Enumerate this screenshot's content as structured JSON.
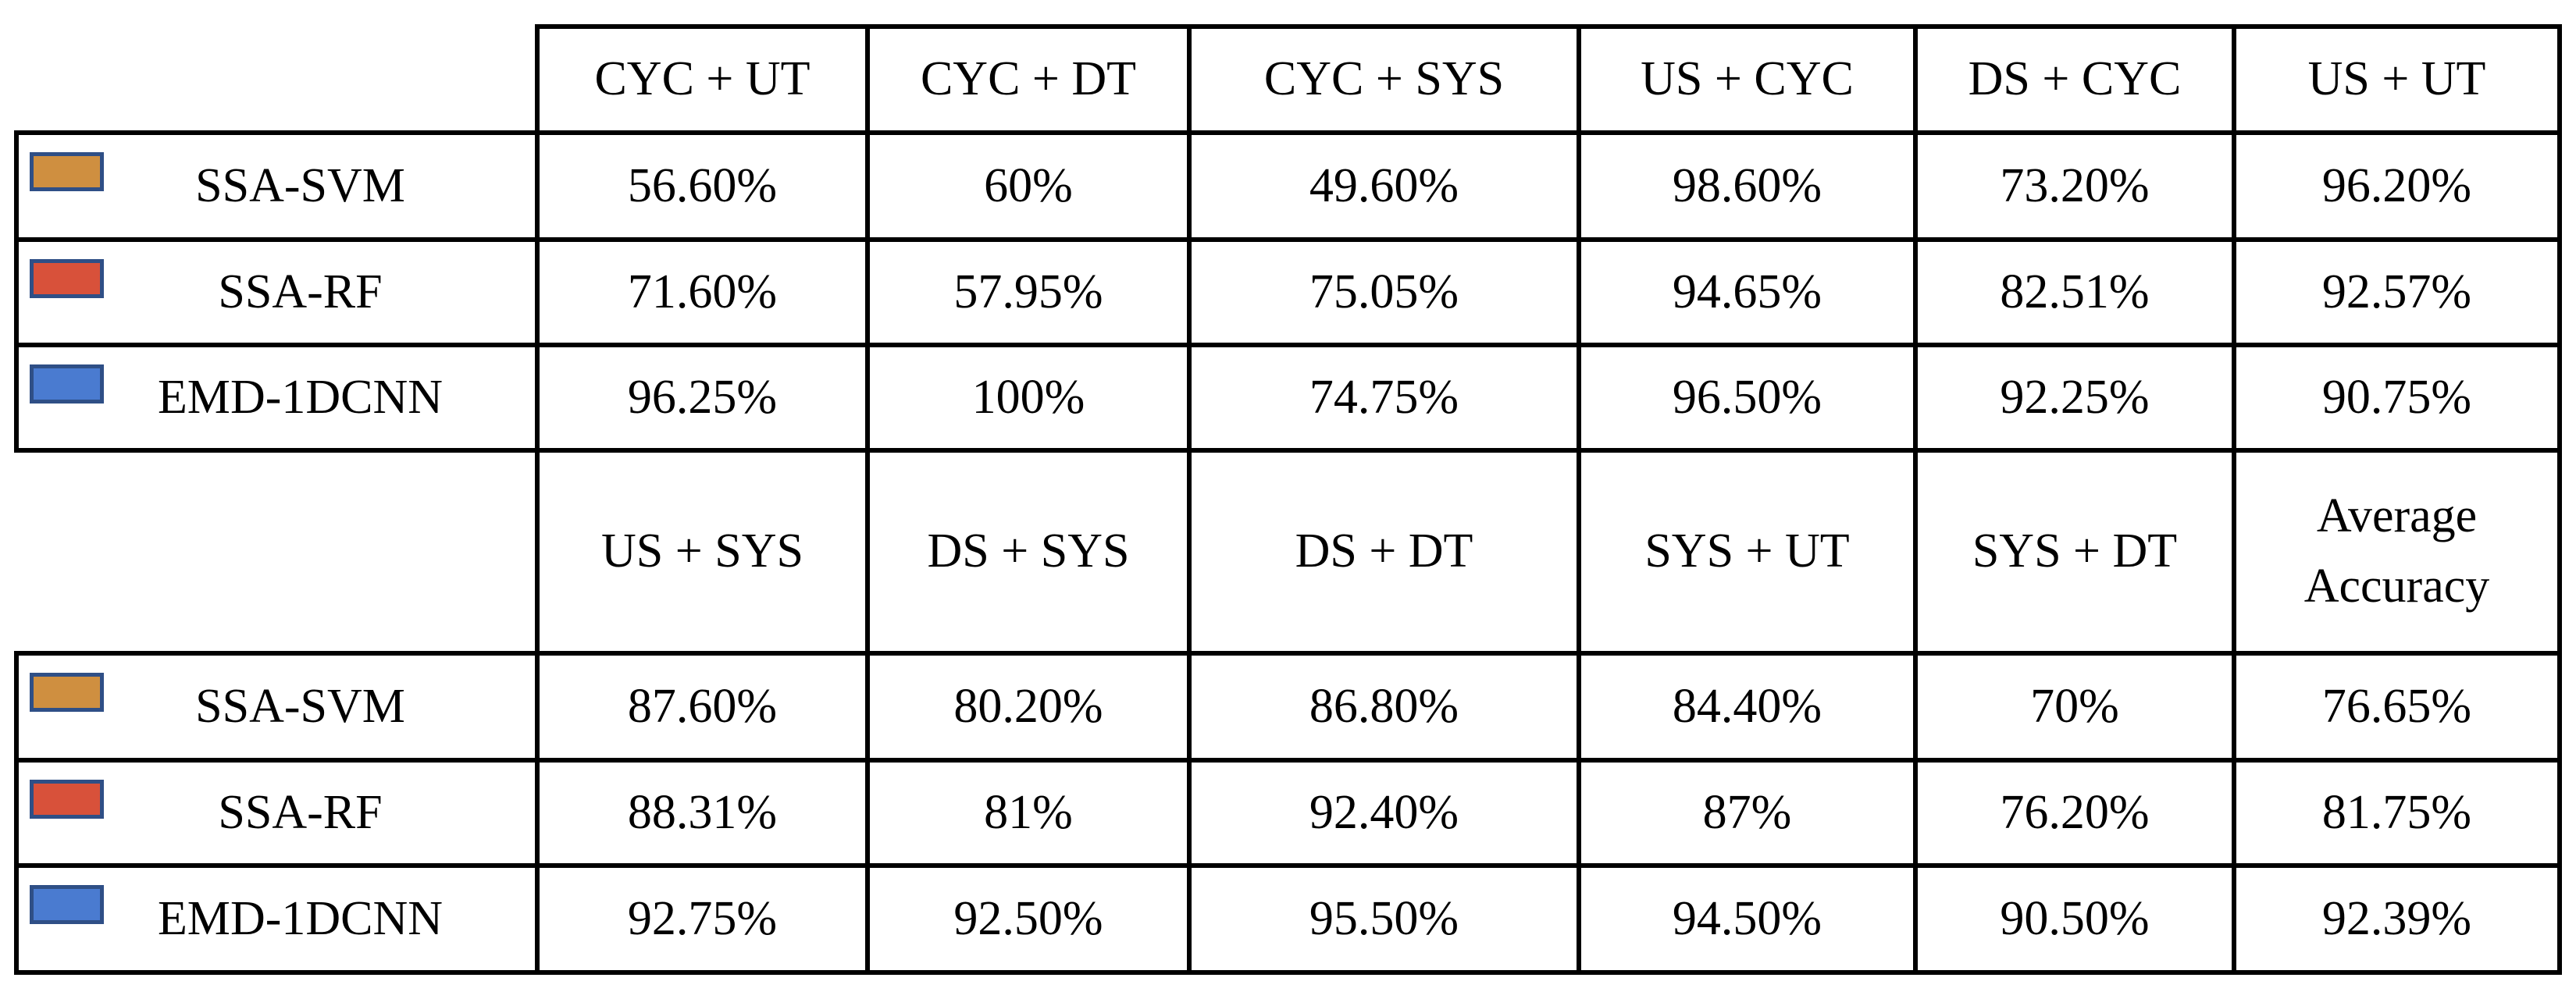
{
  "tables": [
    {
      "columns": [
        "CYC + UT",
        "CYC + DT",
        "CYC + SYS",
        "US + CYC",
        "DS + CYC",
        "US + UT"
      ],
      "rows": [
        {
          "label": "SSA-SVM",
          "color": "#cf8f40",
          "cells": [
            "56.60%",
            "60%",
            "49.60%",
            "98.60%",
            "73.20%",
            "96.20%"
          ]
        },
        {
          "label": "SSA-RF",
          "color": "#d8513a",
          "cells": [
            "71.60%",
            "57.95%",
            "75.05%",
            "94.65%",
            "82.51%",
            "92.57%"
          ]
        },
        {
          "label": "EMD-1DCNN",
          "color": "#4a7bd0",
          "cells": [
            "96.25%",
            "100%",
            "74.75%",
            "96.50%",
            "92.25%",
            "90.75%"
          ]
        }
      ]
    },
    {
      "columns": [
        "US + SYS",
        "DS + SYS",
        "DS + DT",
        "SYS + UT",
        "SYS + DT",
        "Average Accuracy"
      ],
      "rows": [
        {
          "label": "SSA-SVM",
          "color": "#cf8f40",
          "cells": [
            "87.60%",
            "80.20%",
            "86.80%",
            "84.40%",
            "70%",
            "76.65%"
          ]
        },
        {
          "label": "SSA-RF",
          "color": "#d8513a",
          "cells": [
            "88.31%",
            "81%",
            "92.40%",
            "87%",
            "76.20%",
            "81.75%"
          ]
        },
        {
          "label": "EMD-1DCNN",
          "color": "#4a7bd0",
          "cells": [
            "92.75%",
            "92.50%",
            "95.50%",
            "94.50%",
            "90.50%",
            "92.39%"
          ]
        }
      ]
    }
  ]
}
